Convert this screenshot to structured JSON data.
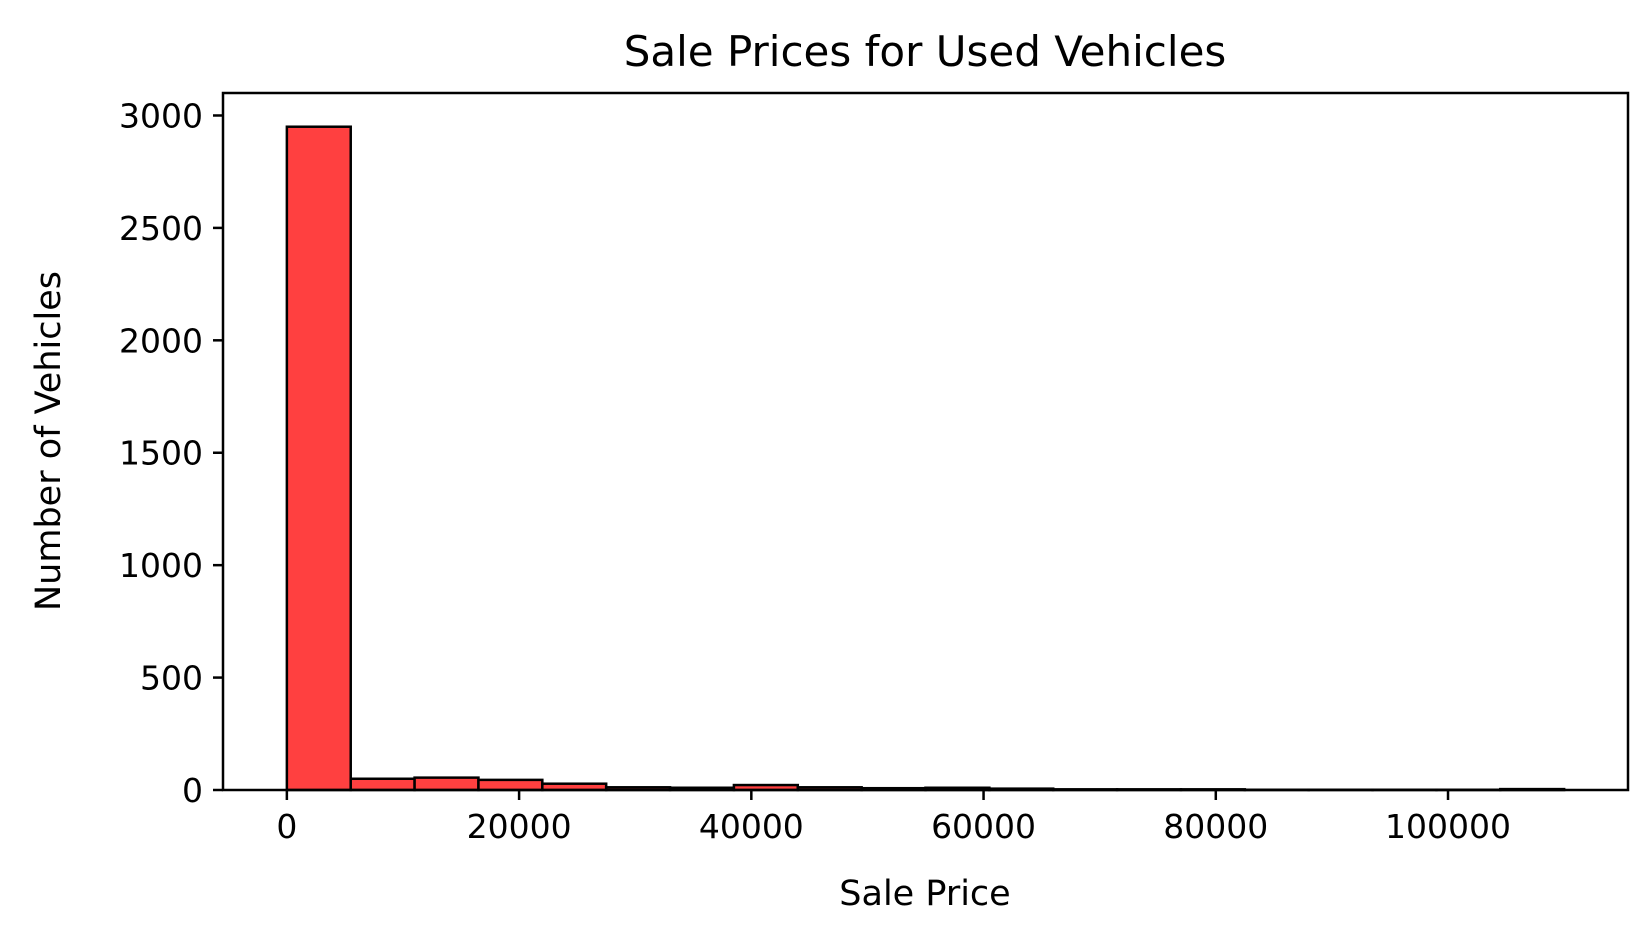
{
  "chart_data": {
    "type": "bar",
    "title": "Sale Prices for Used Vehicles",
    "xlabel": "Sale Price",
    "ylabel": "Number of Vehicles",
    "bar_color": "#ff4040",
    "edge_color": "#000000",
    "bins": [
      {
        "x0": 0,
        "x1": 5500,
        "count": 2950
      },
      {
        "x0": 5500,
        "x1": 11000,
        "count": 50
      },
      {
        "x0": 11000,
        "x1": 16500,
        "count": 55
      },
      {
        "x0": 16500,
        "x1": 22000,
        "count": 45
      },
      {
        "x0": 22000,
        "x1": 27500,
        "count": 28
      },
      {
        "x0": 27500,
        "x1": 33000,
        "count": 12
      },
      {
        "x0": 33000,
        "x1": 38500,
        "count": 10
      },
      {
        "x0": 38500,
        "x1": 44000,
        "count": 22
      },
      {
        "x0": 44000,
        "x1": 49500,
        "count": 12
      },
      {
        "x0": 49500,
        "x1": 55000,
        "count": 8
      },
      {
        "x0": 55000,
        "x1": 60500,
        "count": 10
      },
      {
        "x0": 60500,
        "x1": 66000,
        "count": 6
      },
      {
        "x0": 66000,
        "x1": 71500,
        "count": 3
      },
      {
        "x0": 71500,
        "x1": 77000,
        "count": 3
      },
      {
        "x0": 77000,
        "x1": 82500,
        "count": 3
      },
      {
        "x0": 82500,
        "x1": 88000,
        "count": 1
      },
      {
        "x0": 88000,
        "x1": 93500,
        "count": 1
      },
      {
        "x0": 93500,
        "x1": 99000,
        "count": 1
      },
      {
        "x0": 99000,
        "x1": 104500,
        "count": 1
      },
      {
        "x0": 104500,
        "x1": 110000,
        "count": 4
      }
    ],
    "xlim": [
      -5500,
      115500
    ],
    "ylim": [
      0,
      3100
    ],
    "xticks": [
      {
        "value": 0,
        "label": "0"
      },
      {
        "value": 20000,
        "label": "20000"
      },
      {
        "value": 40000,
        "label": "40000"
      },
      {
        "value": 60000,
        "label": "60000"
      },
      {
        "value": 80000,
        "label": "80000"
      },
      {
        "value": 100000,
        "label": "100000"
      }
    ],
    "yticks": [
      {
        "value": 0,
        "label": "0"
      },
      {
        "value": 500,
        "label": "500"
      },
      {
        "value": 1000,
        "label": "1000"
      },
      {
        "value": 1500,
        "label": "1500"
      },
      {
        "value": 2000,
        "label": "2000"
      },
      {
        "value": 2500,
        "label": "2500"
      },
      {
        "value": 3000,
        "label": "3000"
      }
    ],
    "grid": false
  }
}
